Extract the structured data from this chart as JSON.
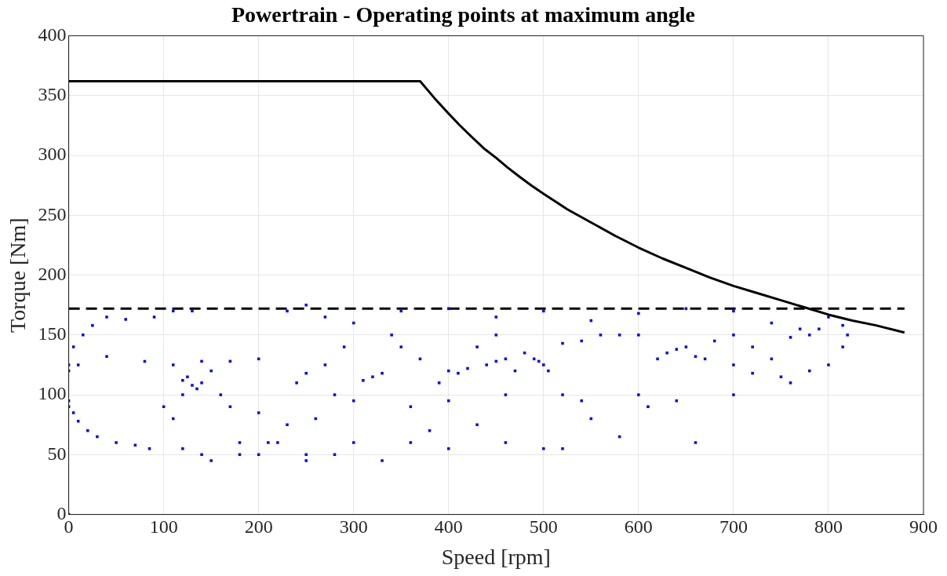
{
  "chart_data": {
    "type": "scatter",
    "title": "Powertrain - Operating points at maximum angle",
    "xlabel": "Speed [rpm]",
    "ylabel": "Torque [Nm]",
    "xlim": [
      0,
      900
    ],
    "xticks": [
      0,
      100,
      200,
      300,
      400,
      500,
      600,
      700,
      800,
      900
    ],
    "ylim": [
      0,
      400
    ],
    "yticks": [
      0,
      50,
      100,
      150,
      200,
      250,
      300,
      350,
      400
    ],
    "grid": true,
    "legend": false,
    "series": [
      {
        "type": "line",
        "color": "#000000",
        "marker": "none",
        "line_style": "solid",
        "x": [
          0,
          370,
          385,
          400,
          412,
          425,
          437,
          450,
          462,
          475,
          487,
          500,
          525,
          550,
          575,
          600,
          625,
          650,
          675,
          700,
          725,
          750,
          775,
          800,
          825,
          850,
          880
        ],
        "values": [
          362,
          362,
          348,
          335,
          325,
          315,
          306,
          298,
          290,
          282,
          275,
          268,
          255,
          244,
          233,
          223,
          214,
          206,
          198,
          191,
          185,
          179,
          173,
          167,
          162,
          158,
          152
        ]
      },
      {
        "color": "#0000ff",
        "marker": "square",
        "x": [
          0,
          0,
          0,
          0,
          0,
          5,
          10,
          20,
          30,
          50,
          70,
          85,
          120,
          140,
          5,
          15,
          25,
          40,
          60,
          90,
          110,
          130,
          10,
          40,
          80,
          110,
          140,
          170,
          200,
          120,
          125,
          130,
          135,
          140,
          120,
          150,
          160,
          100,
          110,
          170,
          180,
          200,
          210,
          230,
          250,
          260,
          280,
          290,
          300,
          320,
          330,
          310,
          340,
          360,
          370,
          380,
          390,
          400,
          410,
          420,
          430,
          440,
          450,
          460,
          470,
          480,
          490,
          500,
          495,
          505,
          520,
          540,
          560,
          580,
          600,
          620,
          630,
          640,
          650,
          660,
          670,
          680,
          700,
          720,
          250,
          240,
          270,
          230,
          250,
          270,
          350,
          400,
          450,
          500,
          550,
          600,
          650,
          700,
          740,
          760,
          770,
          780,
          790,
          800,
          815,
          820,
          815,
          800,
          780,
          750,
          720,
          700,
          740,
          760,
          600,
          610,
          640,
          700,
          520,
          540,
          550,
          520,
          500,
          460,
          430,
          400,
          330,
          300,
          280,
          250,
          220,
          200,
          180,
          150,
          360,
          460,
          580,
          660,
          400,
          300,
          350,
          450
        ],
        "values": [
          0,
          125,
          120,
          95,
          90,
          85,
          78,
          70,
          65,
          60,
          58,
          55,
          55,
          50,
          140,
          150,
          158,
          165,
          163,
          165,
          170,
          170,
          125,
          132,
          128,
          125,
          128,
          128,
          130,
          112,
          115,
          108,
          105,
          110,
          100,
          120,
          100,
          90,
          80,
          90,
          60,
          85,
          60,
          75,
          50,
          80,
          100,
          140,
          160,
          115,
          118,
          112,
          150,
          90,
          130,
          70,
          110,
          120,
          118,
          122,
          140,
          125,
          128,
          130,
          120,
          135,
          130,
          125,
          128,
          120,
          143,
          145,
          150,
          150,
          150,
          130,
          135,
          138,
          140,
          132,
          130,
          145,
          150,
          140,
          118,
          110,
          125,
          170,
          175,
          165,
          170,
          172,
          165,
          170,
          162,
          168,
          172,
          170,
          160,
          148,
          155,
          150,
          155,
          165,
          158,
          150,
          140,
          125,
          120,
          115,
          118,
          125,
          130,
          110,
          100,
          90,
          95,
          100,
          100,
          95,
          80,
          55,
          55,
          60,
          75,
          55,
          45,
          60,
          50,
          45,
          60,
          50,
          50,
          45,
          60,
          100,
          65,
          60,
          95,
          95,
          140,
          150
        ]
      }
    ],
    "ref_lines": [
      {
        "axis": "y",
        "value": 172,
        "color": "#000000",
        "line_style": "dashed"
      }
    ]
  }
}
